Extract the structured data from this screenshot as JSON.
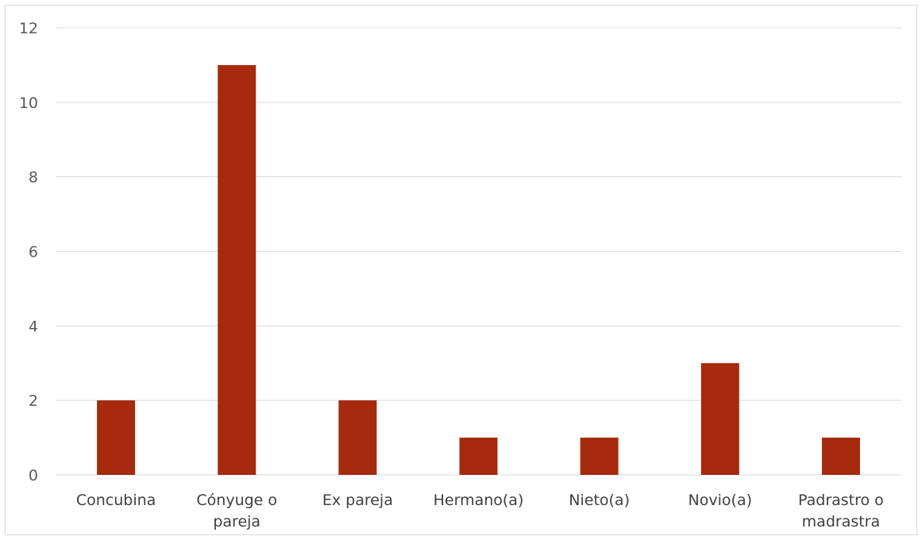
{
  "chart_data": {
    "type": "bar",
    "categories": [
      [
        "Concubina"
      ],
      [
        "Cónyuge o",
        "pareja"
      ],
      [
        "Ex pareja"
      ],
      [
        "Hermano(a)"
      ],
      [
        "Nieto(a)"
      ],
      [
        "Novio(a)"
      ],
      [
        "Padrastro o",
        "madrastra"
      ]
    ],
    "values": [
      2,
      11,
      2,
      1,
      1,
      3,
      1
    ],
    "ylim": [
      0,
      12
    ],
    "yticks": [
      0,
      2,
      4,
      6,
      8,
      10,
      12
    ],
    "title": "",
    "xlabel": "",
    "ylabel": "",
    "grid": true,
    "bar_color": "#A52A0E",
    "grid_color": "#d9d9d9"
  }
}
